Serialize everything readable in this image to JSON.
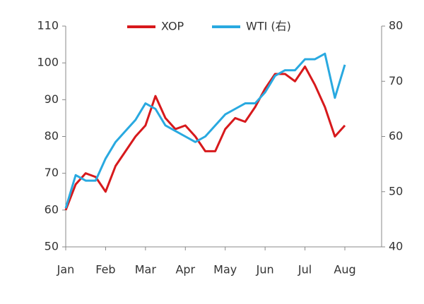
{
  "chart_data": {
    "type": "line",
    "categories": [
      "Jan",
      null,
      null,
      null,
      "Feb",
      null,
      null,
      null,
      "Mar",
      null,
      null,
      null,
      "Apr",
      null,
      null,
      null,
      "May",
      null,
      null,
      null,
      "Jun",
      null,
      null,
      null,
      "Jul",
      null,
      null,
      null,
      "Aug"
    ],
    "series": [
      {
        "name": "XOP",
        "color": "#d7191c",
        "values": [
          60,
          67,
          70,
          69,
          65,
          72,
          76,
          80,
          83,
          91,
          85,
          82,
          83,
          80,
          76,
          76,
          82,
          85,
          84,
          88,
          93,
          97,
          97,
          95,
          99,
          94,
          88,
          80,
          83
        ]
      },
      {
        "name": "WTI (右)",
        "color": "#29a9e0",
        "axis": "y2",
        "values": [
          47,
          53,
          52,
          52,
          56,
          59,
          61,
          63,
          66,
          65,
          62,
          61,
          60,
          59,
          60,
          62,
          64,
          65,
          66,
          66,
          68,
          71,
          72,
          72,
          74,
          74,
          75,
          67,
          73
        ]
      }
    ],
    "ylim": [
      50,
      110
    ],
    "yticks": [
      50,
      60,
      70,
      80,
      90,
      100,
      110
    ],
    "y2lim": [
      40,
      80
    ],
    "y2ticks": [
      40,
      50,
      60,
      70,
      80
    ],
    "legend": "top"
  }
}
